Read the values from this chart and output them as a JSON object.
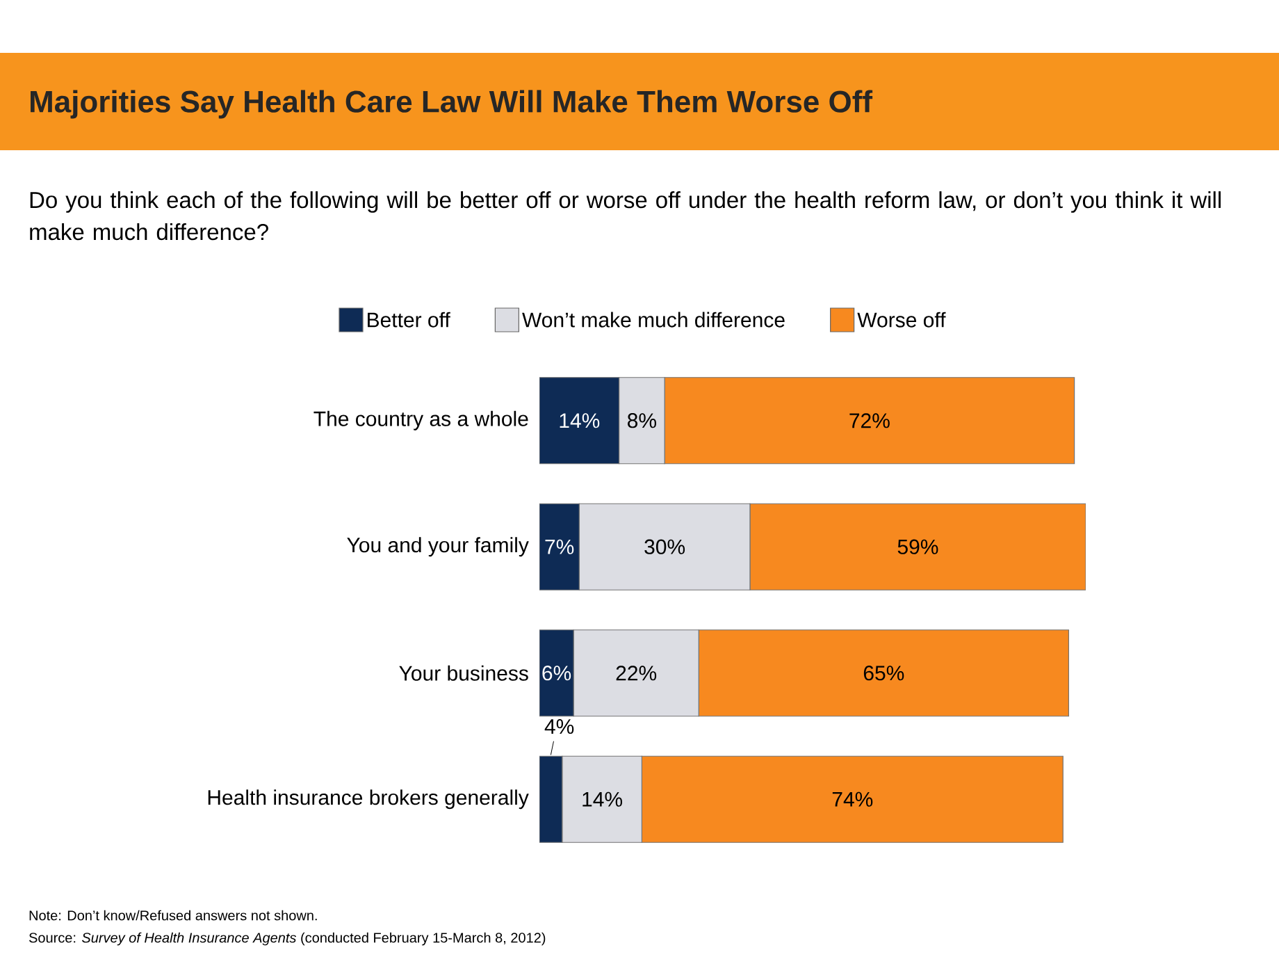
{
  "chart_data": {
    "type": "bar",
    "orientation": "horizontal",
    "stacked": true,
    "title": "Majorities Say Health Care Law Will Make Them Worse Off",
    "subtitle": "Do you think each of the following will be better off or worse off under the health reform law, or don’t you think it will make much difference?",
    "categories": [
      "The country as a whole",
      "You and your family",
      "Your business",
      "Health insurance brokers generally"
    ],
    "series": [
      {
        "name": "Better off",
        "color": "#0e2b55",
        "values": [
          14,
          7,
          6,
          4
        ],
        "value_labels": [
          "14%",
          "7%",
          "6%",
          "4%"
        ]
      },
      {
        "name": "Won’t make much difference",
        "color": "#dcdde3",
        "values": [
          8,
          30,
          22,
          14
        ],
        "value_labels": [
          "8%",
          "30%",
          "22%",
          "14%"
        ]
      },
      {
        "name": "Worse off",
        "color": "#f7891f",
        "values": [
          72,
          59,
          65,
          74
        ],
        "value_labels": [
          "72%",
          "59%",
          "65%",
          "74%"
        ]
      }
    ],
    "legend": "top",
    "annotations": [
      "Note: Don’t know/Refused answers not shown.",
      "Source: *Survey of Health Insurance Agents* (conducted February 15-March 8, 2012)"
    ]
  }
}
